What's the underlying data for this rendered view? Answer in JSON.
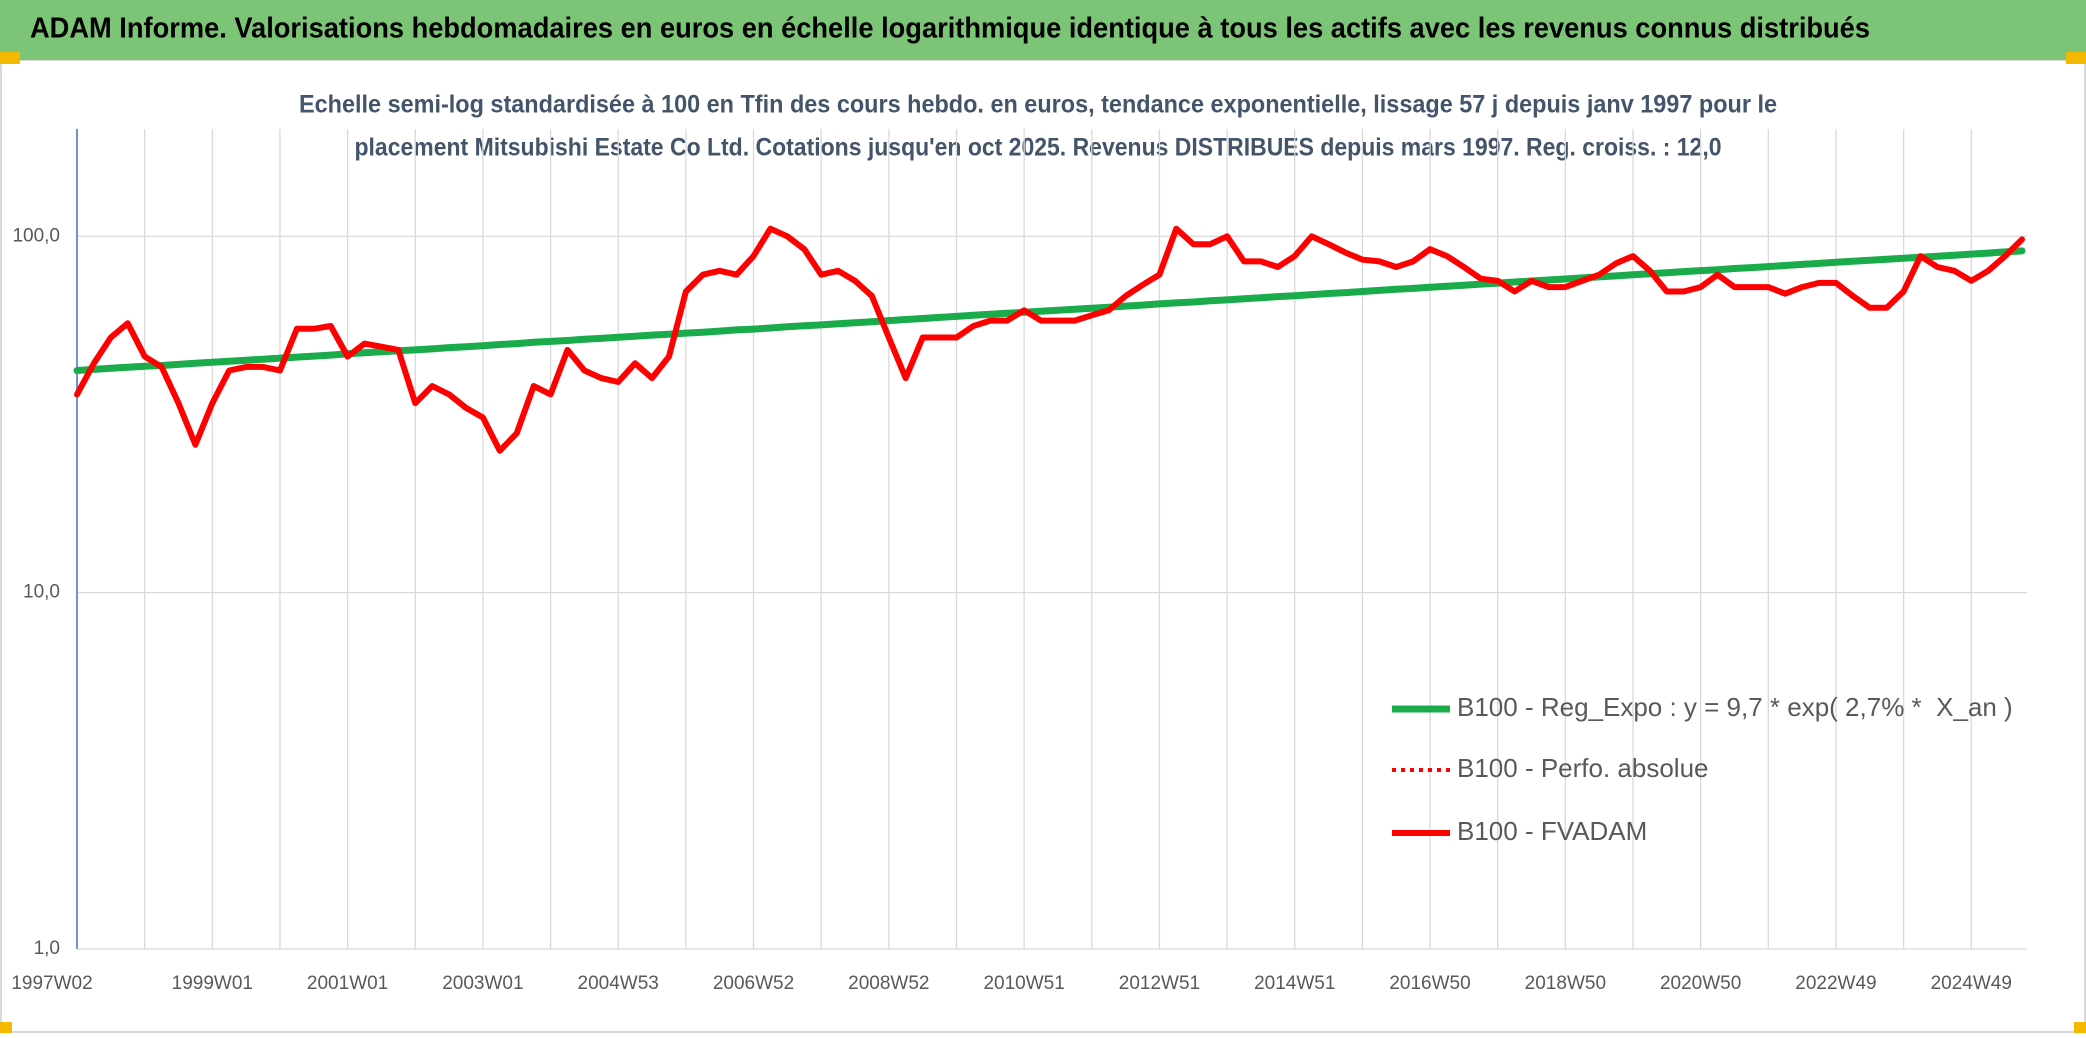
{
  "header": {
    "title": "ADAM Informe. Valorisations hebdomadaires en euros en échelle logarithmique identique à tous les actifs avec les revenus connus distribués"
  },
  "chart_data": {
    "type": "line",
    "subtitle": [
      "Echelle semi-log standardisée à 100 en Tfin des cours hebdo. en euros, tendance exponentielle, lissage 57 j depuis janv 1997 pour le",
      "placement Mitsubishi Estate Co Ltd. Cotations jusqu'en oct 2025. Revenus DISTRIBUES depuis mars 1997. Reg. croiss. : 12,0"
    ],
    "categories": [
      "1997W02",
      null,
      null,
      null,
      null,
      null,
      null,
      null,
      "1999W01",
      null,
      null,
      null,
      null,
      null,
      null,
      null,
      "2001W01",
      null,
      null,
      null,
      null,
      null,
      null,
      null,
      "2003W01",
      null,
      null,
      null,
      null,
      null,
      null,
      null,
      "2004W53",
      null,
      null,
      null,
      null,
      null,
      null,
      null,
      "2006W52",
      null,
      null,
      null,
      null,
      null,
      null,
      null,
      "2008W52",
      null,
      null,
      null,
      null,
      null,
      null,
      null,
      "2010W51",
      null,
      null,
      null,
      null,
      null,
      null,
      null,
      "2012W51",
      null,
      null,
      null,
      null,
      null,
      null,
      null,
      "2014W51",
      null,
      null,
      null,
      null,
      null,
      null,
      null,
      "2016W50",
      null,
      null,
      null,
      null,
      null,
      null,
      null,
      "2018W50",
      null,
      null,
      null,
      null,
      null,
      null,
      null,
      "2020W50",
      null,
      null,
      null,
      null,
      null,
      null,
      null,
      "2022W49",
      null,
      null,
      null,
      null,
      null,
      null,
      null,
      "2024W49",
      null,
      null,
      null
    ],
    "log_scale": true,
    "grid": true,
    "ylim": [
      1,
      200
    ],
    "yticks": [
      {
        "value": 1,
        "label": "1,0"
      },
      {
        "value": 10,
        "label": "10,0"
      },
      {
        "value": 100,
        "label": "100,0"
      }
    ],
    "series": [
      {
        "name": "B100 - Reg_Expo : y = 9,7 * exp( 2,7% *  X_an )",
        "color": "#1aab4b",
        "width": 7,
        "values": [
          42.0,
          42.3,
          42.6,
          42.9,
          43.2,
          43.4,
          43.7,
          44.0,
          44.3,
          44.6,
          44.9,
          45.2,
          45.5,
          45.8,
          46.1,
          46.4,
          46.8,
          47.1,
          47.4,
          47.7,
          48.0,
          48.3,
          48.7,
          49.0,
          49.3,
          49.7,
          50.0,
          50.4,
          50.7,
          51.0,
          51.4,
          51.7,
          52.1,
          52.4,
          52.8,
          53.1,
          53.5,
          53.8,
          54.2,
          54.6,
          54.9,
          55.3,
          55.7,
          56.1,
          56.4,
          56.8,
          57.2,
          57.6,
          58.0,
          58.4,
          58.8,
          59.2,
          59.6,
          60.0,
          60.4,
          60.8,
          61.2,
          61.6,
          62.0,
          62.4,
          62.8,
          63.2,
          63.7,
          64.1,
          64.6,
          65.0,
          65.4,
          65.9,
          66.3,
          66.8,
          67.2,
          67.7,
          68.1,
          68.6,
          69.1,
          69.5,
          70.0,
          70.5,
          71.0,
          71.4,
          71.9,
          72.4,
          72.9,
          73.4,
          73.9,
          74.4,
          74.9,
          75.4,
          75.9,
          76.4,
          76.9,
          77.4,
          78.0,
          78.5,
          79.0,
          79.6,
          80.1,
          80.6,
          81.2,
          81.7,
          82.2,
          82.8,
          83.4,
          83.9,
          84.5,
          85.1,
          85.6,
          86.2,
          86.8,
          87.3,
          87.9,
          88.5,
          89.1,
          89.7,
          90.4,
          91.0
        ]
      },
      {
        "name": "B100 - Perfo. absolue",
        "color": "#ff0000",
        "width": 4,
        "dash": "dotted"
      },
      {
        "name": "B100 - FVADAM",
        "color": "#ff0000",
        "width": 6,
        "values": [
          36,
          44,
          52,
          57,
          46,
          43,
          34,
          26,
          34,
          42,
          43,
          43,
          42,
          55,
          55,
          56,
          46,
          50,
          49,
          48,
          34,
          38,
          36,
          33,
          31,
          25,
          28,
          38,
          36,
          48,
          42,
          40,
          39,
          44,
          40,
          46,
          70,
          78,
          80,
          78,
          88,
          105,
          100,
          92,
          78,
          80,
          75,
          68,
          52,
          40,
          52,
          52,
          52,
          56,
          58,
          58,
          62,
          58,
          58,
          58,
          60,
          62,
          68,
          73,
          78,
          105,
          95,
          95,
          100,
          85,
          85,
          82,
          88,
          100,
          95,
          90,
          86,
          85,
          82,
          85,
          92,
          88,
          82,
          76,
          75,
          70,
          75,
          72,
          72,
          75,
          78,
          84,
          88,
          80,
          70,
          70,
          72,
          78,
          72,
          72,
          72,
          69,
          72,
          74,
          74,
          68,
          63,
          63,
          70,
          88,
          82,
          80,
          75,
          80,
          88,
          98
        ]
      }
    ]
  }
}
